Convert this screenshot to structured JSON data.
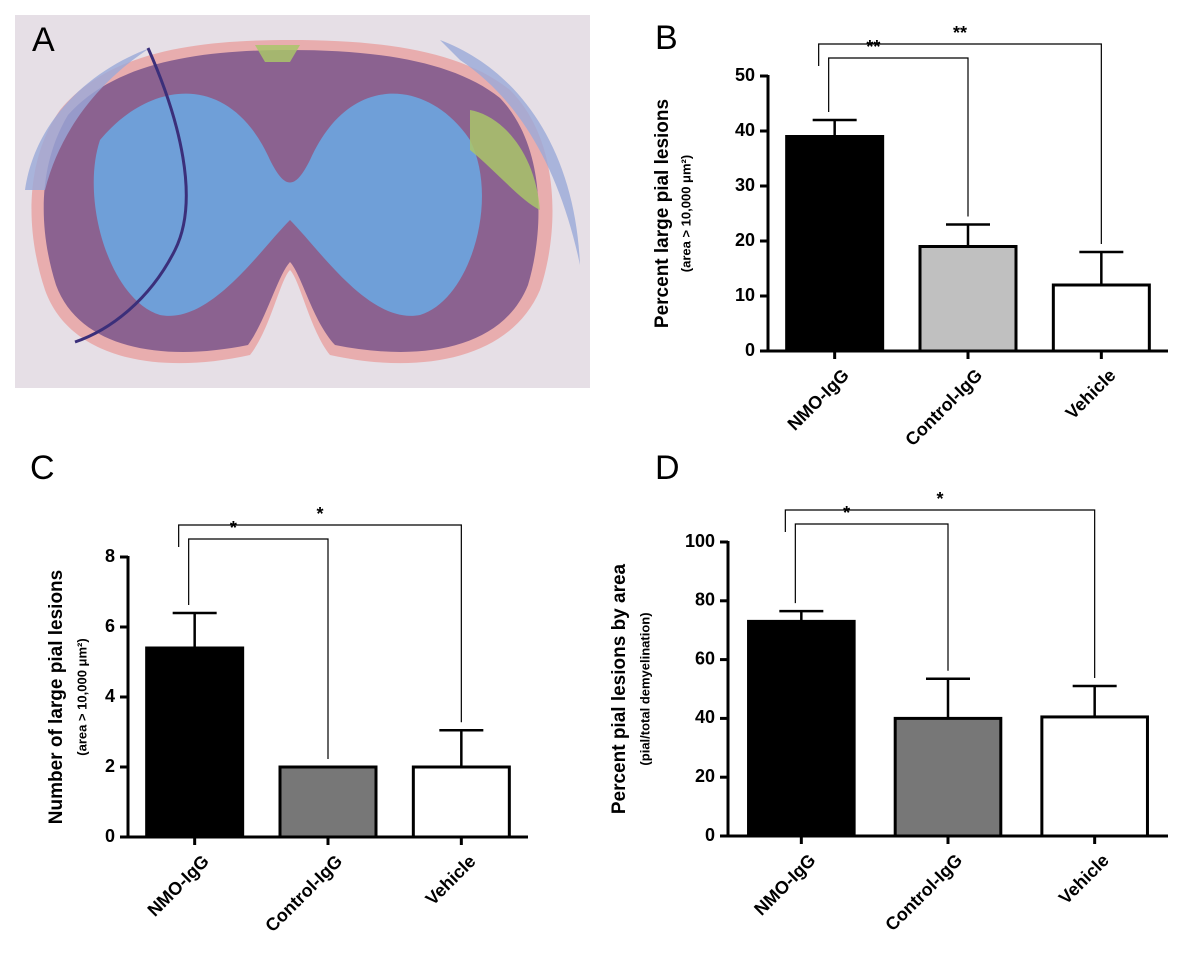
{
  "panel_a": {
    "label": "A"
  },
  "chart_data": [
    {
      "type": "bar",
      "panel": "B",
      "y_label": "Percent large pial lesions",
      "y_sublabel": "(area > 10,000 μm²)",
      "categories": [
        "NMO-IgG",
        "Control-IgG",
        "Vehicle"
      ],
      "values": [
        39,
        19,
        12
      ],
      "error": [
        3,
        4,
        6
      ],
      "colors": [
        "#000000",
        "#c0c0c0",
        "#ffffff"
      ],
      "ylim": [
        0,
        50
      ],
      "yticks": [
        0,
        10,
        20,
        30,
        40,
        50
      ],
      "annotations": [
        "**",
        "**"
      ]
    },
    {
      "type": "bar",
      "panel": "C",
      "y_label": "Number of large pial lesions",
      "y_sublabel": "(area > 10,000 μm²)",
      "categories": [
        "NMO-IgG",
        "Control-IgG",
        "Vehicle"
      ],
      "values": [
        5.4,
        2.0,
        2.0
      ],
      "error": [
        1.0,
        0,
        1.05
      ],
      "colors": [
        "#000000",
        "#777777",
        "#ffffff"
      ],
      "ylim": [
        0,
        8
      ],
      "yticks": [
        0,
        2,
        4,
        6,
        8
      ],
      "annotations": [
        "*",
        "*"
      ]
    },
    {
      "type": "bar",
      "panel": "D",
      "y_label": "Percent pial lesions by area",
      "y_sublabel": "(pial/total demyelination)",
      "categories": [
        "NMO-IgG",
        "Control-IgG",
        "Vehicle"
      ],
      "values": [
        73,
        40,
        40.5
      ],
      "error": [
        3.5,
        13.5,
        10.5
      ],
      "colors": [
        "#000000",
        "#777777",
        "#ffffff"
      ],
      "ylim": [
        0,
        100
      ],
      "yticks": [
        0,
        20,
        40,
        60,
        80,
        100
      ],
      "annotations": [
        "*",
        "*"
      ]
    }
  ]
}
